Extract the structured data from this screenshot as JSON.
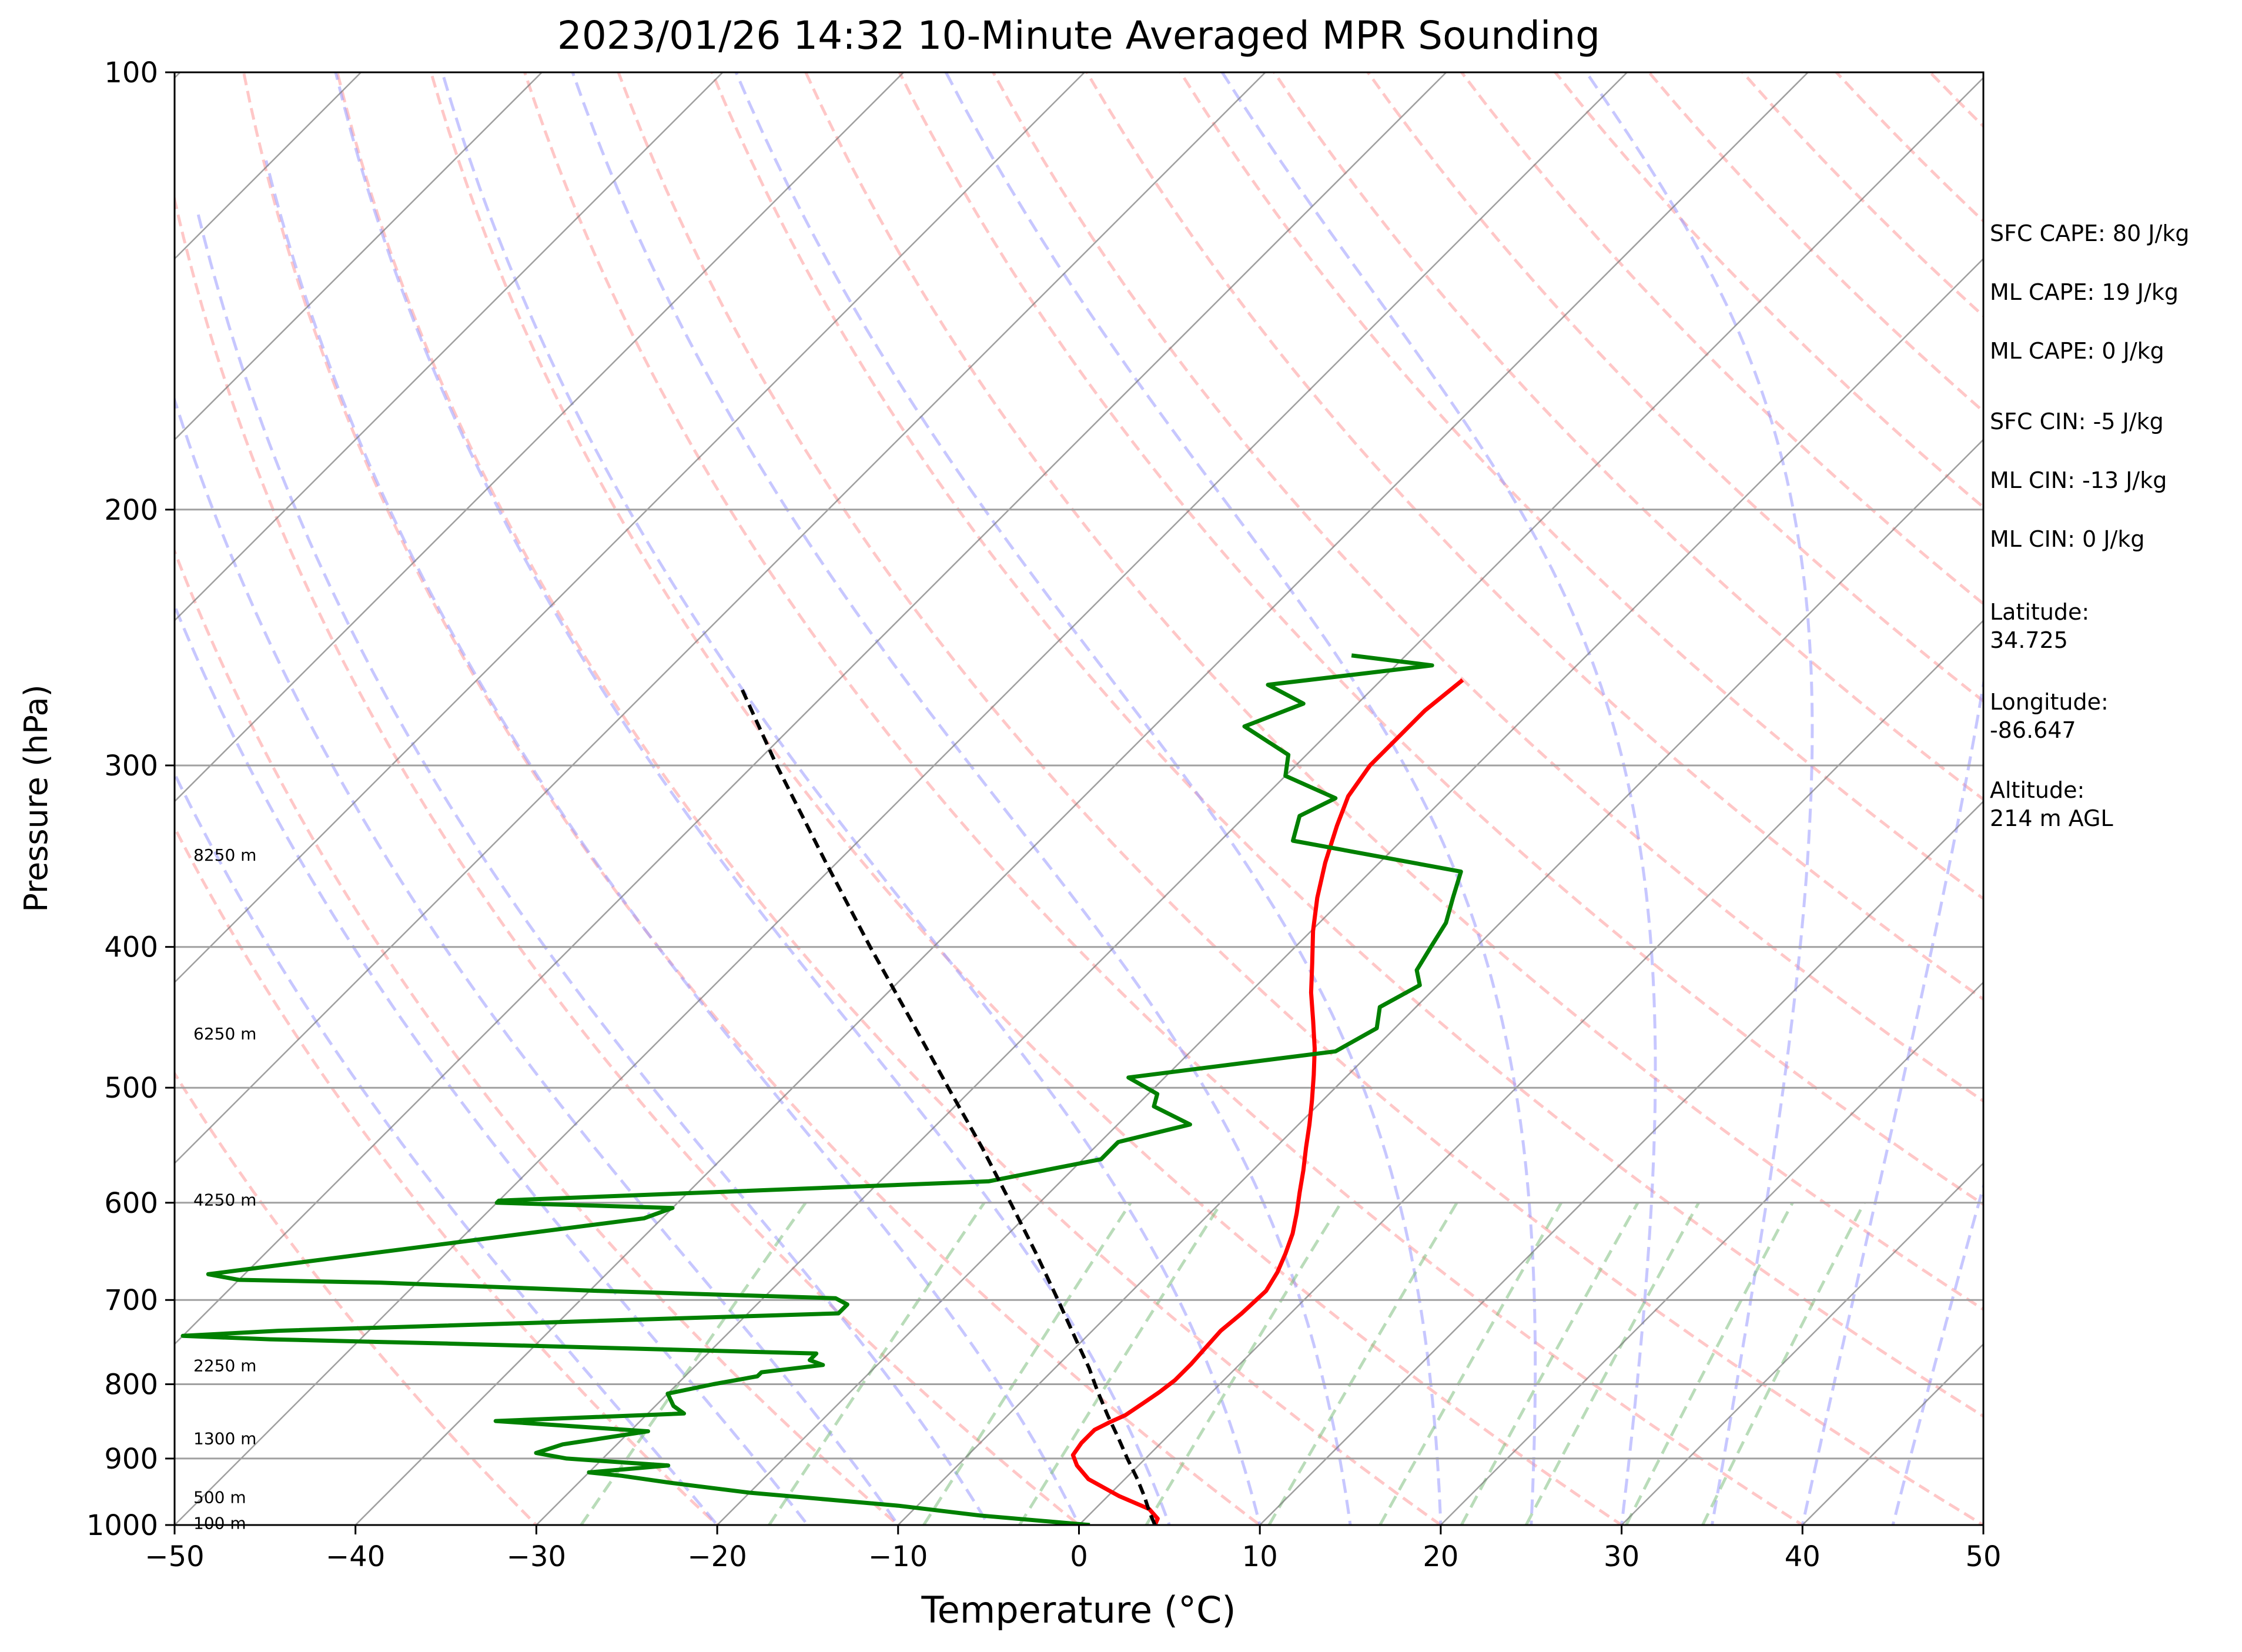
{
  "chart_data": {
    "type": "line",
    "subtype": "skew-t log-p",
    "title": "2023/01/26 14:32 10-Minute Averaged MPR Sounding",
    "xlabel": "Temperature (°C)",
    "ylabel": "Pressure (hPa)",
    "xlim": [
      -50,
      50
    ],
    "ylim": [
      1000,
      100
    ],
    "y_scale": "log",
    "x_ticks": [
      "−50",
      "−40",
      "−30",
      "−20",
      "−10",
      "0",
      "10",
      "20",
      "30",
      "40",
      "50"
    ],
    "y_ticks": [
      "1000",
      "900",
      "800",
      "700",
      "600",
      "500",
      "400",
      "300",
      "200",
      "100"
    ],
    "grid": "horizontal isobars on",
    "colors": {
      "temperature": "#ff0000",
      "dewpoint": "#008000",
      "parcel": "#000000",
      "isotherm": "#808080",
      "dry_adiabat": "#ff9999",
      "moist_adiabat": "#9999ff",
      "mixing_ratio": "#80c080"
    },
    "series": [
      {
        "role": "temperature",
        "pressure": [
          1000,
          990,
          975,
          955,
          930,
          910,
          895,
          878,
          860,
          850,
          840,
          825,
          810,
          795,
          775,
          755,
          735,
          715,
          690,
          670,
          650,
          630,
          610,
          590,
          570,
          550,
          530,
          510,
          490,
          470,
          450,
          430,
          410,
          390,
          370,
          350,
          330,
          315,
          300,
          290,
          275,
          262
        ],
        "temperature": [
          4.2,
          4.0,
          3.0,
          0.6,
          -2.0,
          -3.4,
          -4.2,
          -4.4,
          -4.4,
          -4.0,
          -3.5,
          -3.2,
          -2.9,
          -2.7,
          -2.7,
          -2.8,
          -2.9,
          -2.7,
          -2.6,
          -3.0,
          -3.6,
          -4.3,
          -5.2,
          -6.2,
          -7.2,
          -8.3,
          -9.4,
          -10.6,
          -11.9,
          -13.3,
          -14.9,
          -16.6,
          -18.2,
          -19.9,
          -21.5,
          -23.0,
          -24.4,
          -25.4,
          -25.9,
          -25.9,
          -25.9,
          -25.5
        ]
      },
      {
        "role": "dewpoint",
        "pressure": [
          1000,
          985,
          970,
          950,
          935,
          925,
          920,
          910,
          900,
          892,
          880,
          862,
          848,
          838,
          828,
          812,
          800,
          790,
          785,
          776,
          770,
          762,
          750,
          745,
          741,
          735,
          715,
          705,
          698,
          690,
          681,
          678,
          672,
          615,
          605,
          600,
          598,
          580,
          560,
          545,
          530,
          515,
          505,
          492,
          472,
          455,
          440,
          425,
          415,
          400,
          385,
          370,
          355,
          338,
          325,
          316,
          305,
          295,
          282,
          272,
          264,
          256,
          252
        ],
        "dewpoint": [
          0.6,
          -6.0,
          -11.0,
          -20.0,
          -25.0,
          -28.0,
          -30.0,
          -26.0,
          -32.0,
          -34.0,
          -33.0,
          -29.0,
          -38.0,
          -28.0,
          -29.0,
          -30.0,
          -28.0,
          -26.0,
          -26.0,
          -23.0,
          -24.0,
          -24.0,
          -45.0,
          -55.0,
          -60.0,
          -55.0,
          -25.0,
          -25.0,
          -26.0,
          -39.5,
          -52.0,
          -60.0,
          -62.0,
          -41.0,
          -40.0,
          -50.0,
          -50.0,
          -24.0,
          -19.0,
          -19.0,
          -16.0,
          -19.0,
          -19.5,
          -22.0,
          -12.0,
          -11.0,
          -12.0,
          -11.0,
          -12.0,
          -12.5,
          -13.0,
          -14.0,
          -15.0,
          -26.0,
          -27.0,
          -26.0,
          -30.0,
          -31.0,
          -35.0,
          -33.0,
          -36.0,
          -28.0,
          -33.0
        ]
      },
      {
        "role": "parcel",
        "pressure": [
          1000,
          980,
          955,
          930,
          900,
          870,
          840,
          810,
          800,
          780,
          750,
          700,
          650,
          600,
          550,
          500,
          450,
          400,
          350,
          300,
          265
        ],
        "temperature": [
          4.2,
          3.2,
          2.0,
          0.7,
          -1.0,
          -2.7,
          -4.5,
          -6.3,
          -6.9,
          -8.1,
          -10.1,
          -13.6,
          -17.4,
          -21.6,
          -26.2,
          -31.4,
          -37.1,
          -43.5,
          -50.6,
          -58.7,
          -65.0
        ]
      }
    ],
    "height_labels": [
      {
        "pressure": 345,
        "text": "8250 m"
      },
      {
        "pressure": 458,
        "text": "6250 m"
      },
      {
        "pressure": 596,
        "text": "4250 m"
      },
      {
        "pressure": 775,
        "text": "2250 m"
      },
      {
        "pressure": 870,
        "text": "1300 m"
      },
      {
        "pressure": 955,
        "text": "500 m"
      },
      {
        "pressure": 995,
        "text": "100 m"
      }
    ],
    "side_panel": [
      "SFC CAPE: 80 J/kg",
      "ML CAPE: 19 J/kg",
      "ML CAPE: 0 J/kg",
      "SFC CIN: -5 J/kg",
      "ML CIN: -13 J/kg",
      "ML CIN: 0 J/kg",
      "Latitude:\n34.725",
      "Longitude:\n-86.647",
      "Altitude:\n214 m AGL"
    ]
  }
}
